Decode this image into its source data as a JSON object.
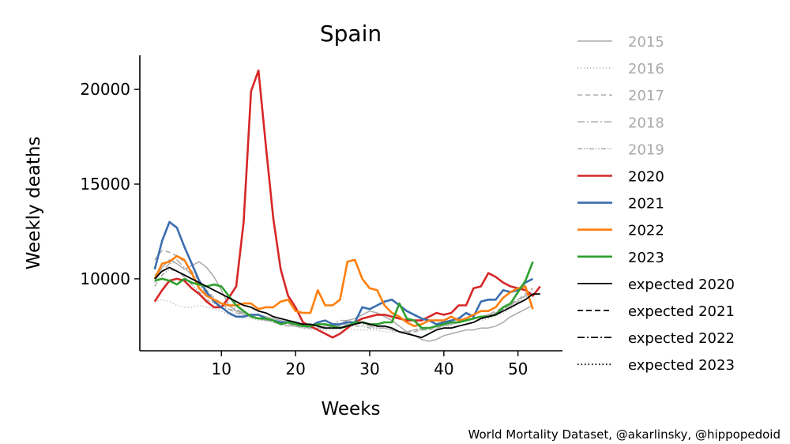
{
  "chart_data": {
    "type": "line",
    "title": "Spain",
    "xlabel": "Weeks",
    "ylabel": "Weekly deaths",
    "xlim": [
      -1,
      56
    ],
    "ylim": [
      6200,
      21800
    ],
    "xticks": [
      "10",
      "20",
      "30",
      "40",
      "50"
    ],
    "yticks": [
      "10000",
      "15000",
      "20000"
    ],
    "grid": false,
    "legend_position": "right",
    "source": "World Mortality Dataset, @akarlinsky, @hippopedoid",
    "series": [
      {
        "name": "2015",
        "color": "#aaaaaa",
        "dash": "solid",
        "width": 1.5,
        "values": [
          9800,
          10600,
          11000,
          10800,
          10500,
          10700,
          10900,
          10600,
          10100,
          9400,
          8600,
          8300,
          8200,
          8100,
          8100,
          8000,
          7900,
          7800,
          7700,
          7600,
          7500,
          7400,
          7400,
          7500,
          7500,
          7600,
          7800,
          7900,
          8100,
          8300,
          8200,
          8000,
          7800,
          7500,
          7200,
          7000,
          6800,
          6700,
          6800,
          7000,
          7100,
          7200,
          7300,
          7300,
          7400,
          7400,
          7500,
          7700,
          8000,
          8200,
          8400,
          8600
        ]
      },
      {
        "name": "2016",
        "color": "#aaaaaa",
        "dash": "1,3",
        "width": 1.5,
        "values": [
          8800,
          8900,
          8800,
          8600,
          8500,
          8500,
          8600,
          8500,
          8400,
          8300,
          8100,
          8000,
          7900,
          7900,
          7800,
          7800,
          7700,
          7600,
          7500,
          7500,
          7400,
          7300,
          7300,
          7300,
          7300,
          7400,
          7400,
          7300,
          7300,
          7300,
          7300,
          7200,
          7200,
          7200,
          7200,
          7300,
          7300,
          7300,
          7400,
          7400,
          7500,
          7500,
          7600,
          7700,
          7800,
          7900,
          8000,
          8200,
          8400,
          8700,
          9000,
          9400
        ]
      },
      {
        "name": "2017",
        "color": "#aaaaaa",
        "dash": "6,4",
        "width": 1.5,
        "values": [
          11000,
          11500,
          11400,
          11200,
          10900,
          10400,
          9900,
          9400,
          9000,
          8700,
          8400,
          8200,
          8100,
          8000,
          7900,
          7800,
          7800,
          7700,
          7600,
          7600,
          7500,
          7400,
          7400,
          7400,
          7500,
          7500,
          7600,
          7700,
          7700,
          7600,
          7500,
          7400,
          7300,
          7200,
          7200,
          7200,
          7300,
          7300,
          7400,
          7500,
          7600,
          7700,
          7800,
          7900,
          8000,
          8100,
          8300,
          8500,
          8700,
          8900,
          9200,
          9500
        ]
      },
      {
        "name": "2018",
        "color": "#aaaaaa",
        "dash": "9,3,2,3",
        "width": 1.5,
        "values": [
          10200,
          10400,
          10800,
          11000,
          10600,
          10200,
          9700,
          9200,
          8900,
          8700,
          8600,
          8400,
          8200,
          8100,
          7900,
          7800,
          7800,
          7700,
          7600,
          7500,
          7500,
          7400,
          7400,
          7500,
          7600,
          7800,
          7800,
          7700,
          7600,
          7500,
          7400,
          7400,
          7300,
          7200,
          7200,
          7300,
          7300,
          7400,
          7500,
          7500,
          7600,
          7700,
          7800,
          7900,
          8000,
          8100,
          8200,
          8400,
          8600,
          8900,
          9100,
          9300
        ]
      },
      {
        "name": "2019",
        "color": "#aaaaaa",
        "dash": "6,2,1.5,2,1.5,2",
        "width": 1.5,
        "values": [
          9600,
          10200,
          10500,
          10400,
          10100,
          9700,
          9300,
          8900,
          8700,
          8500,
          8400,
          8300,
          8100,
          8000,
          7900,
          7800,
          7700,
          7600,
          7500,
          7500,
          7400,
          7400,
          7400,
          7400,
          7400,
          7400,
          7500,
          7500,
          7500,
          7400,
          7400,
          7400,
          7300,
          7200,
          7200,
          7300,
          7400,
          7400,
          7500,
          7500,
          7600,
          7700,
          7800,
          7900,
          8000,
          8100,
          8200,
          8400,
          8600,
          8800,
          9100,
          9400
        ]
      },
      {
        "name": "2020",
        "color": "#d62728",
        "dash": "solid",
        "width": 2.6,
        "values": [
          8800,
          9400,
          9900,
          10000,
          9900,
          9500,
          9200,
          8800,
          8500,
          8500,
          9000,
          9600,
          13000,
          19900,
          21000,
          17000,
          13200,
          10500,
          9100,
          8500,
          7700,
          7500,
          7300,
          7100,
          6900,
          7100,
          7400,
          7700,
          7900,
          8000,
          8100,
          8100,
          8000,
          7900,
          7800,
          7800,
          7800,
          8000,
          8200,
          8100,
          8200,
          8600,
          8600,
          9500,
          9600,
          10300,
          10100,
          9800,
          9600,
          9500,
          9400,
          9100,
          9600
        ]
      },
      {
        "name": "2021",
        "color": "#3a6eaf",
        "dash": "solid",
        "width": 2.6,
        "values": [
          10500,
          12000,
          13000,
          12700,
          11700,
          10800,
          9900,
          9300,
          8800,
          8500,
          8200,
          8000,
          8000,
          8100,
          8100,
          7900,
          7800,
          7700,
          7700,
          7600,
          7500,
          7500,
          7700,
          7800,
          7600,
          7600,
          7700,
          7700,
          8500,
          8400,
          8600,
          8800,
          8900,
          8600,
          8300,
          8100,
          7900,
          7800,
          7600,
          7700,
          7800,
          7900,
          8200,
          8000,
          8800,
          8900,
          8900,
          9400,
          9300,
          9400,
          9800,
          10000
        ]
      },
      {
        "name": "2022",
        "color": "#ff7f0e",
        "dash": "solid",
        "width": 2.6,
        "values": [
          10000,
          10800,
          10900,
          11200,
          11000,
          10300,
          9500,
          9100,
          8900,
          8700,
          8600,
          8600,
          8700,
          8700,
          8400,
          8500,
          8500,
          8800,
          8900,
          8300,
          8200,
          8200,
          9400,
          8600,
          8600,
          8900,
          10900,
          11000,
          10000,
          9500,
          9400,
          8600,
          8200,
          8000,
          7700,
          7500,
          7600,
          7800,
          7800,
          7800,
          8000,
          7800,
          7900,
          8100,
          8300,
          8300,
          8500,
          9000,
          9300,
          9500,
          9600,
          8400
        ]
      },
      {
        "name": "2023",
        "color": "#2ca02c",
        "dash": "solid",
        "width": 2.6,
        "values": [
          9900,
          10000,
          9900,
          9700,
          10000,
          9800,
          9700,
          9600,
          9700,
          9600,
          9100,
          8600,
          8300,
          8000,
          7900,
          7900,
          7800,
          7600,
          7700,
          7600,
          7500,
          7500,
          7600,
          7600,
          7500,
          7400,
          7500,
          7700,
          7700,
          7600,
          7600,
          7700,
          7700,
          8700,
          7900,
          7800,
          7400,
          7400,
          7500,
          7600,
          7700,
          7700,
          7800,
          7900,
          8000,
          8000,
          8100,
          8500,
          8700,
          9300,
          9900,
          10900
        ]
      },
      {
        "name": "expected 2020",
        "color": "#000000",
        "dash": "solid",
        "width": 1.8,
        "values": [
          10000,
          10400,
          10600,
          10400,
          10200,
          10000,
          9800,
          9600,
          9400,
          9200,
          9000,
          8800,
          8600,
          8500,
          8300,
          8200,
          8000,
          7900,
          7800,
          7700,
          7600,
          7600,
          7500,
          7400,
          7400,
          7400,
          7500,
          7600,
          7700,
          7600,
          7500,
          7500,
          7400,
          7200,
          7100,
          7000,
          6900,
          7100,
          7300,
          7400,
          7400,
          7500,
          7600,
          7700,
          7900,
          8000,
          8100,
          8300,
          8500,
          8700,
          8900,
          9200,
          9200
        ]
      },
      {
        "name": "expected 2021",
        "color": "#000000",
        "dash": "7,4",
        "width": 1.8,
        "values": []
      },
      {
        "name": "expected 2022",
        "color": "#000000",
        "dash": "9,3,2,3",
        "width": 1.8,
        "values": []
      },
      {
        "name": "expected 2023",
        "color": "#000000",
        "dash": "1.5,3",
        "width": 1.8,
        "values": []
      }
    ]
  }
}
